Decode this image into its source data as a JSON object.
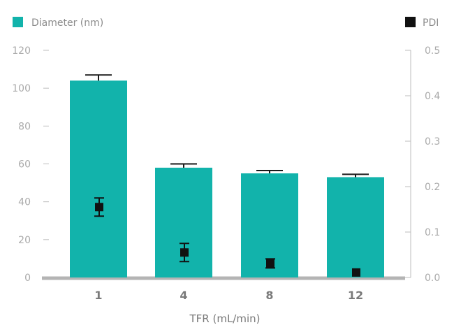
{
  "colors": {
    "diameter": "#12b3ab",
    "pdi": "#111111",
    "axis": "#bdbdbd",
    "baseline": "#b4b4b4",
    "error_bar": "#1a1a1a"
  },
  "chart_data": {
    "type": "bar",
    "categories": [
      "1",
      "4",
      "8",
      "12"
    ],
    "xlabel": "TFR (mL/min)",
    "ylabel": "",
    "y2label": "",
    "ylim": [
      0,
      120
    ],
    "y2lim": [
      0,
      0.5
    ],
    "yticks": [
      "0",
      "20",
      "40",
      "60",
      "80",
      "100",
      "120"
    ],
    "y2ticks": [
      "0.0",
      "0.1",
      "0.2",
      "0.3",
      "0.4",
      "0.5"
    ],
    "grid": false,
    "legend_placement": "top",
    "series": [
      {
        "name": "Diameter (nm)",
        "kind": "bar",
        "axis": "left",
        "values": [
          104,
          58,
          55,
          53
        ],
        "errors": [
          3,
          2,
          1.5,
          1.5
        ]
      },
      {
        "name": "PDI",
        "kind": "scatter",
        "axis": "right",
        "values": [
          0.155,
          0.055,
          0.031,
          0.011
        ],
        "errors": [
          0.02,
          0.02,
          0.01,
          0.003
        ]
      }
    ]
  }
}
